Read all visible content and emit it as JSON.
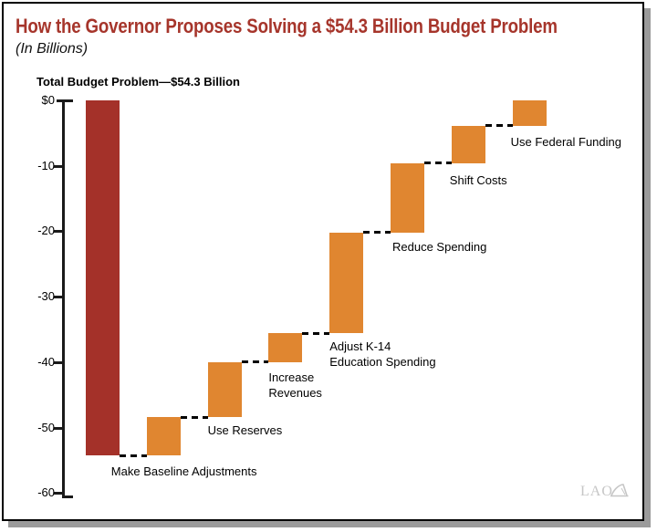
{
  "page": {
    "title": "How the Governor Proposes Solving a $54.3 Billion Budget Problem",
    "subtitle": "(In Billions)",
    "logo_text": "LAO"
  },
  "colors": {
    "title_red": "#a6352b",
    "bar_red": "#a43129",
    "bar_orange": "#e08630",
    "axis_black": "#1a1a1a",
    "connector_black": "#000000",
    "logo_gray": "#c6c6c6",
    "frame_black": "#000000",
    "shadow_gray": "#9b9b9b"
  },
  "chart_data": {
    "type": "bar",
    "variant": "waterfall",
    "title": "Total Budget Problem—$54.3 Billion",
    "unit_note": "(In Billions)",
    "total_amount_billion": 54.3,
    "ylabel": "",
    "xlabel": "",
    "ylim": [
      -60,
      0
    ],
    "grid": false,
    "legend": "none",
    "connector_style": "dashed",
    "yticks": [
      {
        "value": 0,
        "label": "$0"
      },
      {
        "value": -10,
        "label": "-10"
      },
      {
        "value": -20,
        "label": "-20"
      },
      {
        "value": -30,
        "label": "-30"
      },
      {
        "value": -40,
        "label": "-40"
      },
      {
        "value": -50,
        "label": "-50"
      },
      {
        "value": -60,
        "label": "-60"
      }
    ],
    "bars": [
      {
        "name": "Total Budget Problem",
        "label_lines": [],
        "start": 0,
        "end": -54.3,
        "amount": 54.3,
        "color": "red"
      },
      {
        "name": "Make Baseline Adjustments",
        "label_lines": [
          "Make Baseline Adjustments"
        ],
        "start": -54.3,
        "end": -48.4,
        "amount": 5.9,
        "color": "orange"
      },
      {
        "name": "Use Reserves",
        "label_lines": [
          "Use Reserves"
        ],
        "start": -48.4,
        "end": -40.0,
        "amount": 8.4,
        "color": "orange"
      },
      {
        "name": "Increase Revenues",
        "label_lines": [
          "Increase",
          "Revenues"
        ],
        "start": -40.0,
        "end": -35.6,
        "amount": 4.4,
        "color": "orange"
      },
      {
        "name": "Adjust K-14 Education Spending",
        "label_lines": [
          "Adjust K-14",
          "Education Spending"
        ],
        "start": -35.6,
        "end": -20.2,
        "amount": 15.4,
        "color": "orange"
      },
      {
        "name": "Reduce Spending",
        "label_lines": [
          "Reduce Spending"
        ],
        "start": -20.2,
        "end": -9.6,
        "amount": 10.6,
        "color": "orange"
      },
      {
        "name": "Shift Costs",
        "label_lines": [
          "Shift Costs"
        ],
        "start": -9.6,
        "end": -3.9,
        "amount": 5.7,
        "color": "orange"
      },
      {
        "name": "Use Federal Funding",
        "label_lines": [
          "Use Federal Funding"
        ],
        "start": -3.9,
        "end": 0.0,
        "amount": 3.9,
        "color": "orange"
      }
    ]
  }
}
